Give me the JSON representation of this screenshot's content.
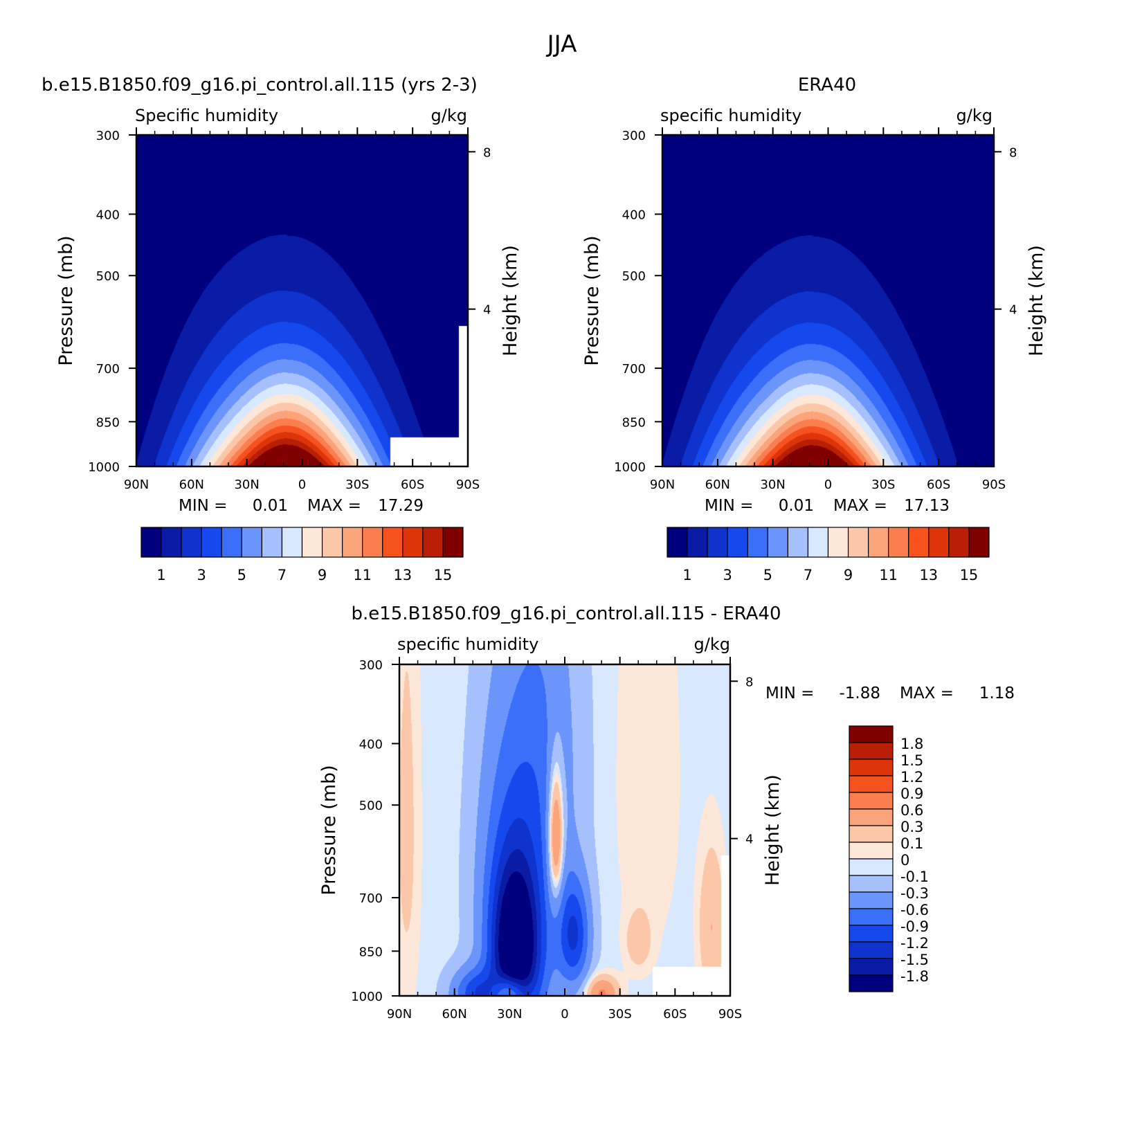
{
  "figure": {
    "title": "JJA"
  },
  "chart_data": [
    {
      "type": "heatmap",
      "panel": "model",
      "title": "b.e15.B1850.f09_g16.pi_control.all.115 (yrs 2-3)",
      "left_label": "Specific humidity",
      "right_label": "g/kg",
      "xlabel": "",
      "ylabel": "Pressure (mb)",
      "y2label": "Height (km)",
      "x_ticks": [
        "90N",
        "60N",
        "30N",
        "0",
        "30S",
        "60S",
        "90S"
      ],
      "x_tick_values": [
        90,
        60,
        30,
        0,
        -30,
        -60,
        -90
      ],
      "xlim": [
        90,
        -90
      ],
      "y_ticks": [
        300,
        400,
        500,
        700,
        850,
        1000
      ],
      "ylim": [
        1000,
        300
      ],
      "y_scale": "log",
      "y2_ticks": [
        "8",
        "4"
      ],
      "y2_tick_values": [
        8,
        4
      ],
      "stats": {
        "min_label": "MIN =",
        "min": "0.01",
        "max_label": "MAX =",
        "max": "17.29"
      },
      "levels": [
        1,
        2,
        3,
        4,
        5,
        6,
        7,
        8,
        9,
        10,
        11,
        12,
        13,
        14,
        15
      ],
      "colorbar_labels": [
        "1",
        "3",
        "5",
        "7",
        "9",
        "11",
        "13",
        "15"
      ],
      "colorbar_label_values": [
        1,
        3,
        5,
        7,
        9,
        11,
        13,
        15
      ],
      "colors": [
        "#00007f",
        "#0a1ba6",
        "#0f33cc",
        "#1549ee",
        "#3b6ffa",
        "#6c95fb",
        "#a6bffd",
        "#d8e8fe",
        "#fde7d8",
        "#fcc7a8",
        "#fba47c",
        "#fa7e50",
        "#f55220",
        "#dd3409",
        "#b81f05",
        "#800000"
      ],
      "field": {
        "peak_value": 17.29,
        "peak_lat": 8,
        "decay_lat_deg": 49,
        "lowest_value": 0.01,
        "scale_height_km": 2.05,
        "n_asymmetry": 0.35,
        "missing": "orography (southern high latitudes)"
      }
    },
    {
      "type": "heatmap",
      "panel": "obs",
      "title": "ERA40",
      "left_label": "specific humidity",
      "right_label": "g/kg",
      "xlabel": "",
      "ylabel": "Pressure (mb)",
      "y2label": "Height (km)",
      "x_ticks": [
        "90N",
        "60N",
        "30N",
        "0",
        "30S",
        "60S",
        "90S"
      ],
      "x_tick_values": [
        90,
        60,
        30,
        0,
        -30,
        -60,
        -90
      ],
      "xlim": [
        90,
        -90
      ],
      "y_ticks": [
        300,
        400,
        500,
        700,
        850,
        1000
      ],
      "ylim": [
        1000,
        300
      ],
      "y_scale": "log",
      "y2_ticks": [
        "8",
        "4"
      ],
      "y2_tick_values": [
        8,
        4
      ],
      "stats": {
        "min_label": "MIN =",
        "min": "0.01",
        "max_label": "MAX =",
        "max": "17.13"
      },
      "levels": [
        1,
        2,
        3,
        4,
        5,
        6,
        7,
        8,
        9,
        10,
        11,
        12,
        13,
        14,
        15
      ],
      "colorbar_labels": [
        "1",
        "3",
        "5",
        "7",
        "9",
        "11",
        "13",
        "15"
      ],
      "colorbar_label_values": [
        1,
        3,
        5,
        7,
        9,
        11,
        13,
        15
      ],
      "colors": [
        "#00007f",
        "#0a1ba6",
        "#0f33cc",
        "#1549ee",
        "#3b6ffa",
        "#6c95fb",
        "#a6bffd",
        "#d8e8fe",
        "#fde7d8",
        "#fcc7a8",
        "#fba47c",
        "#fa7e50",
        "#f55220",
        "#dd3409",
        "#b81f05",
        "#800000"
      ],
      "field": {
        "peak_value": 17.13,
        "peak_lat": 8,
        "decay_lat_deg": 49,
        "lowest_value": 0.01,
        "scale_height_km": 2.05,
        "n_asymmetry": 0.35,
        "missing": "none"
      }
    },
    {
      "type": "heatmap",
      "panel": "difference",
      "title": "b.e15.B1850.f09_g16.pi_control.all.115 - ERA40",
      "left_label": "specific humidity",
      "right_label": "g/kg",
      "xlabel": "",
      "ylabel": "Pressure (mb)",
      "y2label": "Height (km)",
      "x_ticks": [
        "90N",
        "60N",
        "30N",
        "0",
        "30S",
        "60S",
        "90S"
      ],
      "x_tick_values": [
        90,
        60,
        30,
        0,
        -30,
        -60,
        -90
      ],
      "xlim": [
        90,
        -90
      ],
      "y_ticks": [
        300,
        400,
        500,
        700,
        850,
        1000
      ],
      "ylim": [
        1000,
        300
      ],
      "y_scale": "log",
      "y2_ticks": [
        "8",
        "4"
      ],
      "y2_tick_values": [
        8,
        4
      ],
      "stats": {
        "min_label": "MIN =",
        "min": "-1.88",
        "max_label": "MAX =",
        "max": "1.18"
      },
      "levels": [
        -1.8,
        -1.5,
        -1.2,
        -0.9,
        -0.6,
        -0.3,
        -0.1,
        0,
        0.1,
        0.3,
        0.6,
        0.9,
        1.2,
        1.5,
        1.8
      ],
      "colorbar_labels": [
        "1.8",
        "1.5",
        "1.2",
        "0.9",
        "0.6",
        "0.3",
        "0.1",
        "0",
        "-0.1",
        "-0.3",
        "-0.6",
        "-0.9",
        "-1.2",
        "-1.5",
        "-1.8"
      ],
      "colorbar_label_values": [
        1.8,
        1.5,
        1.2,
        0.9,
        0.6,
        0.3,
        0.1,
        0,
        -0.1,
        -0.3,
        -0.6,
        -0.9,
        -1.2,
        -1.5,
        -1.8
      ],
      "colors": [
        "#00007f",
        "#0a1ba6",
        "#0f33cc",
        "#1549ee",
        "#3b6ffa",
        "#6c95fb",
        "#a6bffd",
        "#d8e8fe",
        "#fde7d8",
        "#fcc7a8",
        "#fba47c",
        "#fa7e50",
        "#f55220",
        "#dd3409",
        "#b81f05",
        "#800000"
      ],
      "field": {
        "background": -0.05,
        "features": [
          {
            "lat": 27,
            "p": 850,
            "amp": -1.88,
            "lat_width": 9,
            "p_width": 160
          },
          {
            "lat": 22,
            "p": 720,
            "amp": -0.8,
            "lat_width": 13,
            "p_width": 300
          },
          {
            "lat": 10,
            "p": 400,
            "amp": -0.35,
            "lat_width": 13,
            "p_width": 180
          },
          {
            "lat": -5,
            "p": 800,
            "amp": -1.15,
            "lat_width": 6,
            "p_width": 110
          },
          {
            "lat": 48,
            "p": 990,
            "amp": -1.0,
            "lat_width": 9,
            "p_width": 60
          },
          {
            "lat": 36,
            "p": 620,
            "amp": -0.3,
            "lat_width": 10,
            "p_width": 220
          },
          {
            "lat": 5,
            "p": 560,
            "amp": 1.15,
            "lat_width": 3,
            "p_width": 100
          },
          {
            "lat": 30,
            "p": 990,
            "amp": 1.18,
            "lat_width": 6,
            "p_width": 45
          },
          {
            "lat": -20,
            "p": 990,
            "amp": 0.7,
            "lat_width": 6,
            "p_width": 40
          },
          {
            "lat": -80,
            "p": 780,
            "amp": 0.35,
            "lat_width": 5,
            "p_width": 150
          },
          {
            "lat": 86,
            "p": 550,
            "amp": 0.2,
            "lat_width": 5,
            "p_width": 320
          },
          {
            "lat": -40,
            "p": 820,
            "amp": 0.25,
            "lat_width": 5,
            "p_width": 60
          },
          {
            "lat": -45,
            "p": 450,
            "amp": 0.15,
            "lat_width": 12,
            "p_width": 250
          }
        ],
        "missing": "orography (southern high latitudes)"
      }
    }
  ]
}
